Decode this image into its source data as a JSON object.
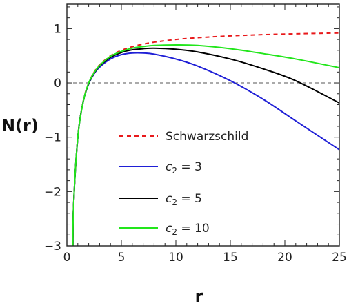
{
  "chart_data": {
    "type": "line",
    "xlabel": "r",
    "ylabel": "N(r)",
    "xlim": [
      0,
      25
    ],
    "ylim": [
      -3,
      1.45
    ],
    "x_ticks": [
      0,
      5,
      10,
      15,
      20,
      25
    ],
    "x_tick_labels": [
      "0",
      "5",
      "10",
      "15",
      "20",
      "25"
    ],
    "y_ticks": [
      -3,
      -2,
      -1,
      0,
      1
    ],
    "y_tick_labels": [
      "−3",
      "−2",
      "−1",
      "0",
      "1"
    ],
    "reference_line": {
      "y": 0,
      "style": "dashed",
      "color": "#555555"
    },
    "legend_position": "center",
    "series": [
      {
        "name": "Schwarzschild",
        "legend": {
          "prefix": "",
          "sub": "",
          "suffix": "Schwarzschild"
        },
        "color": "#e8191b",
        "style": "dashed",
        "x": [
          0.6,
          1,
          1.5,
          2,
          2.5,
          3,
          4,
          5,
          6,
          7,
          8,
          10,
          12,
          15,
          18,
          21,
          25
        ],
        "y": [
          -2.33,
          -1.0,
          -0.333,
          0.0,
          0.2,
          0.333,
          0.5,
          0.6,
          0.667,
          0.714,
          0.75,
          0.8,
          0.833,
          0.867,
          0.889,
          0.905,
          0.92
        ]
      },
      {
        "name": "c2 = 3",
        "legend": {
          "prefix": "c",
          "sub": "2",
          "suffix": " = 3"
        },
        "color": "#1f1fd6",
        "style": "solid",
        "x": [
          0.6,
          1,
          1.5,
          2,
          2.5,
          3,
          4,
          5,
          6,
          7,
          8,
          10,
          12,
          15,
          18,
          21,
          25
        ],
        "y": [
          -2.33,
          -1.01,
          -0.34,
          -0.02,
          0.17,
          0.29,
          0.44,
          0.52,
          0.55,
          0.55,
          0.53,
          0.44,
          0.31,
          0.04,
          -0.3,
          -0.7,
          -1.23
        ]
      },
      {
        "name": "c2 = 5",
        "legend": {
          "prefix": "c",
          "sub": "2",
          "suffix": " = 5"
        },
        "color": "#000000",
        "style": "solid",
        "x": [
          0.6,
          1,
          1.5,
          2,
          2.5,
          3,
          4,
          5,
          6,
          7,
          8,
          10,
          12,
          15,
          18,
          21,
          25
        ],
        "y": [
          -2.33,
          -1.0,
          -0.34,
          -0.01,
          0.18,
          0.31,
          0.47,
          0.56,
          0.61,
          0.63,
          0.64,
          0.62,
          0.57,
          0.44,
          0.26,
          0.04,
          -0.37
        ]
      },
      {
        "name": "c2 = 10",
        "legend": {
          "prefix": "c",
          "sub": "2",
          "suffix": " = 10"
        },
        "color": "#22e61b",
        "style": "solid",
        "x": [
          0.6,
          1,
          1.5,
          2,
          2.5,
          3,
          4,
          5,
          6,
          7,
          8,
          10,
          12,
          15,
          18,
          21,
          25
        ],
        "y": [
          -2.33,
          -1.0,
          -0.34,
          0.0,
          0.19,
          0.32,
          0.49,
          0.58,
          0.64,
          0.67,
          0.69,
          0.7,
          0.69,
          0.63,
          0.54,
          0.44,
          0.28
        ]
      }
    ]
  }
}
